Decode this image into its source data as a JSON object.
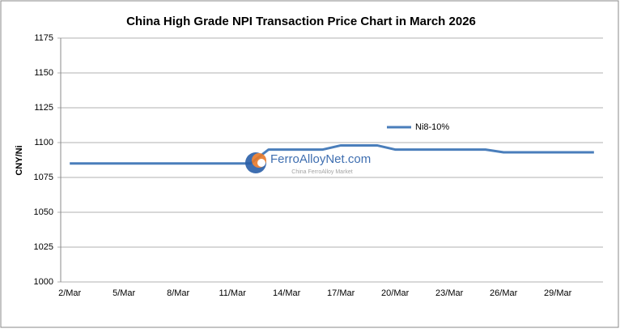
{
  "chart_data": {
    "type": "line",
    "title": "China High Grade NPI Transaction Price Chart in March 2026",
    "y_label": "CNY/Ni",
    "categories": [
      "2/Mar",
      null,
      null,
      "5/Mar",
      null,
      null,
      "8/Mar",
      null,
      null,
      "11/Mar",
      null,
      null,
      "14/Mar",
      null,
      null,
      "17/Mar",
      null,
      null,
      "20/Mar",
      null,
      null,
      "23/Mar",
      null,
      null,
      "26/Mar",
      null,
      null,
      "29/Mar",
      null,
      null
    ],
    "series": [
      {
        "name": "Ni8-10%",
        "color": "#4a7ebb",
        "values": [
          1085,
          1085,
          1085,
          1085,
          1085,
          1085,
          1085,
          1085,
          1085,
          1085,
          1085,
          1095,
          1095,
          1095,
          1095,
          1098,
          1098,
          1098,
          1095,
          1095,
          1095,
          1095,
          1095,
          1095,
          1093,
          1093,
          1093,
          1093,
          1093,
          1093
        ]
      }
    ],
    "ylim": [
      1000,
      1175
    ],
    "yticks": [
      1000,
      1025,
      1050,
      1075,
      1100,
      1125,
      1150,
      1175
    ],
    "grid": true,
    "watermark": {
      "name": "FerroAlloyNet.com",
      "tagline": "China FerroAlloy Market"
    }
  }
}
